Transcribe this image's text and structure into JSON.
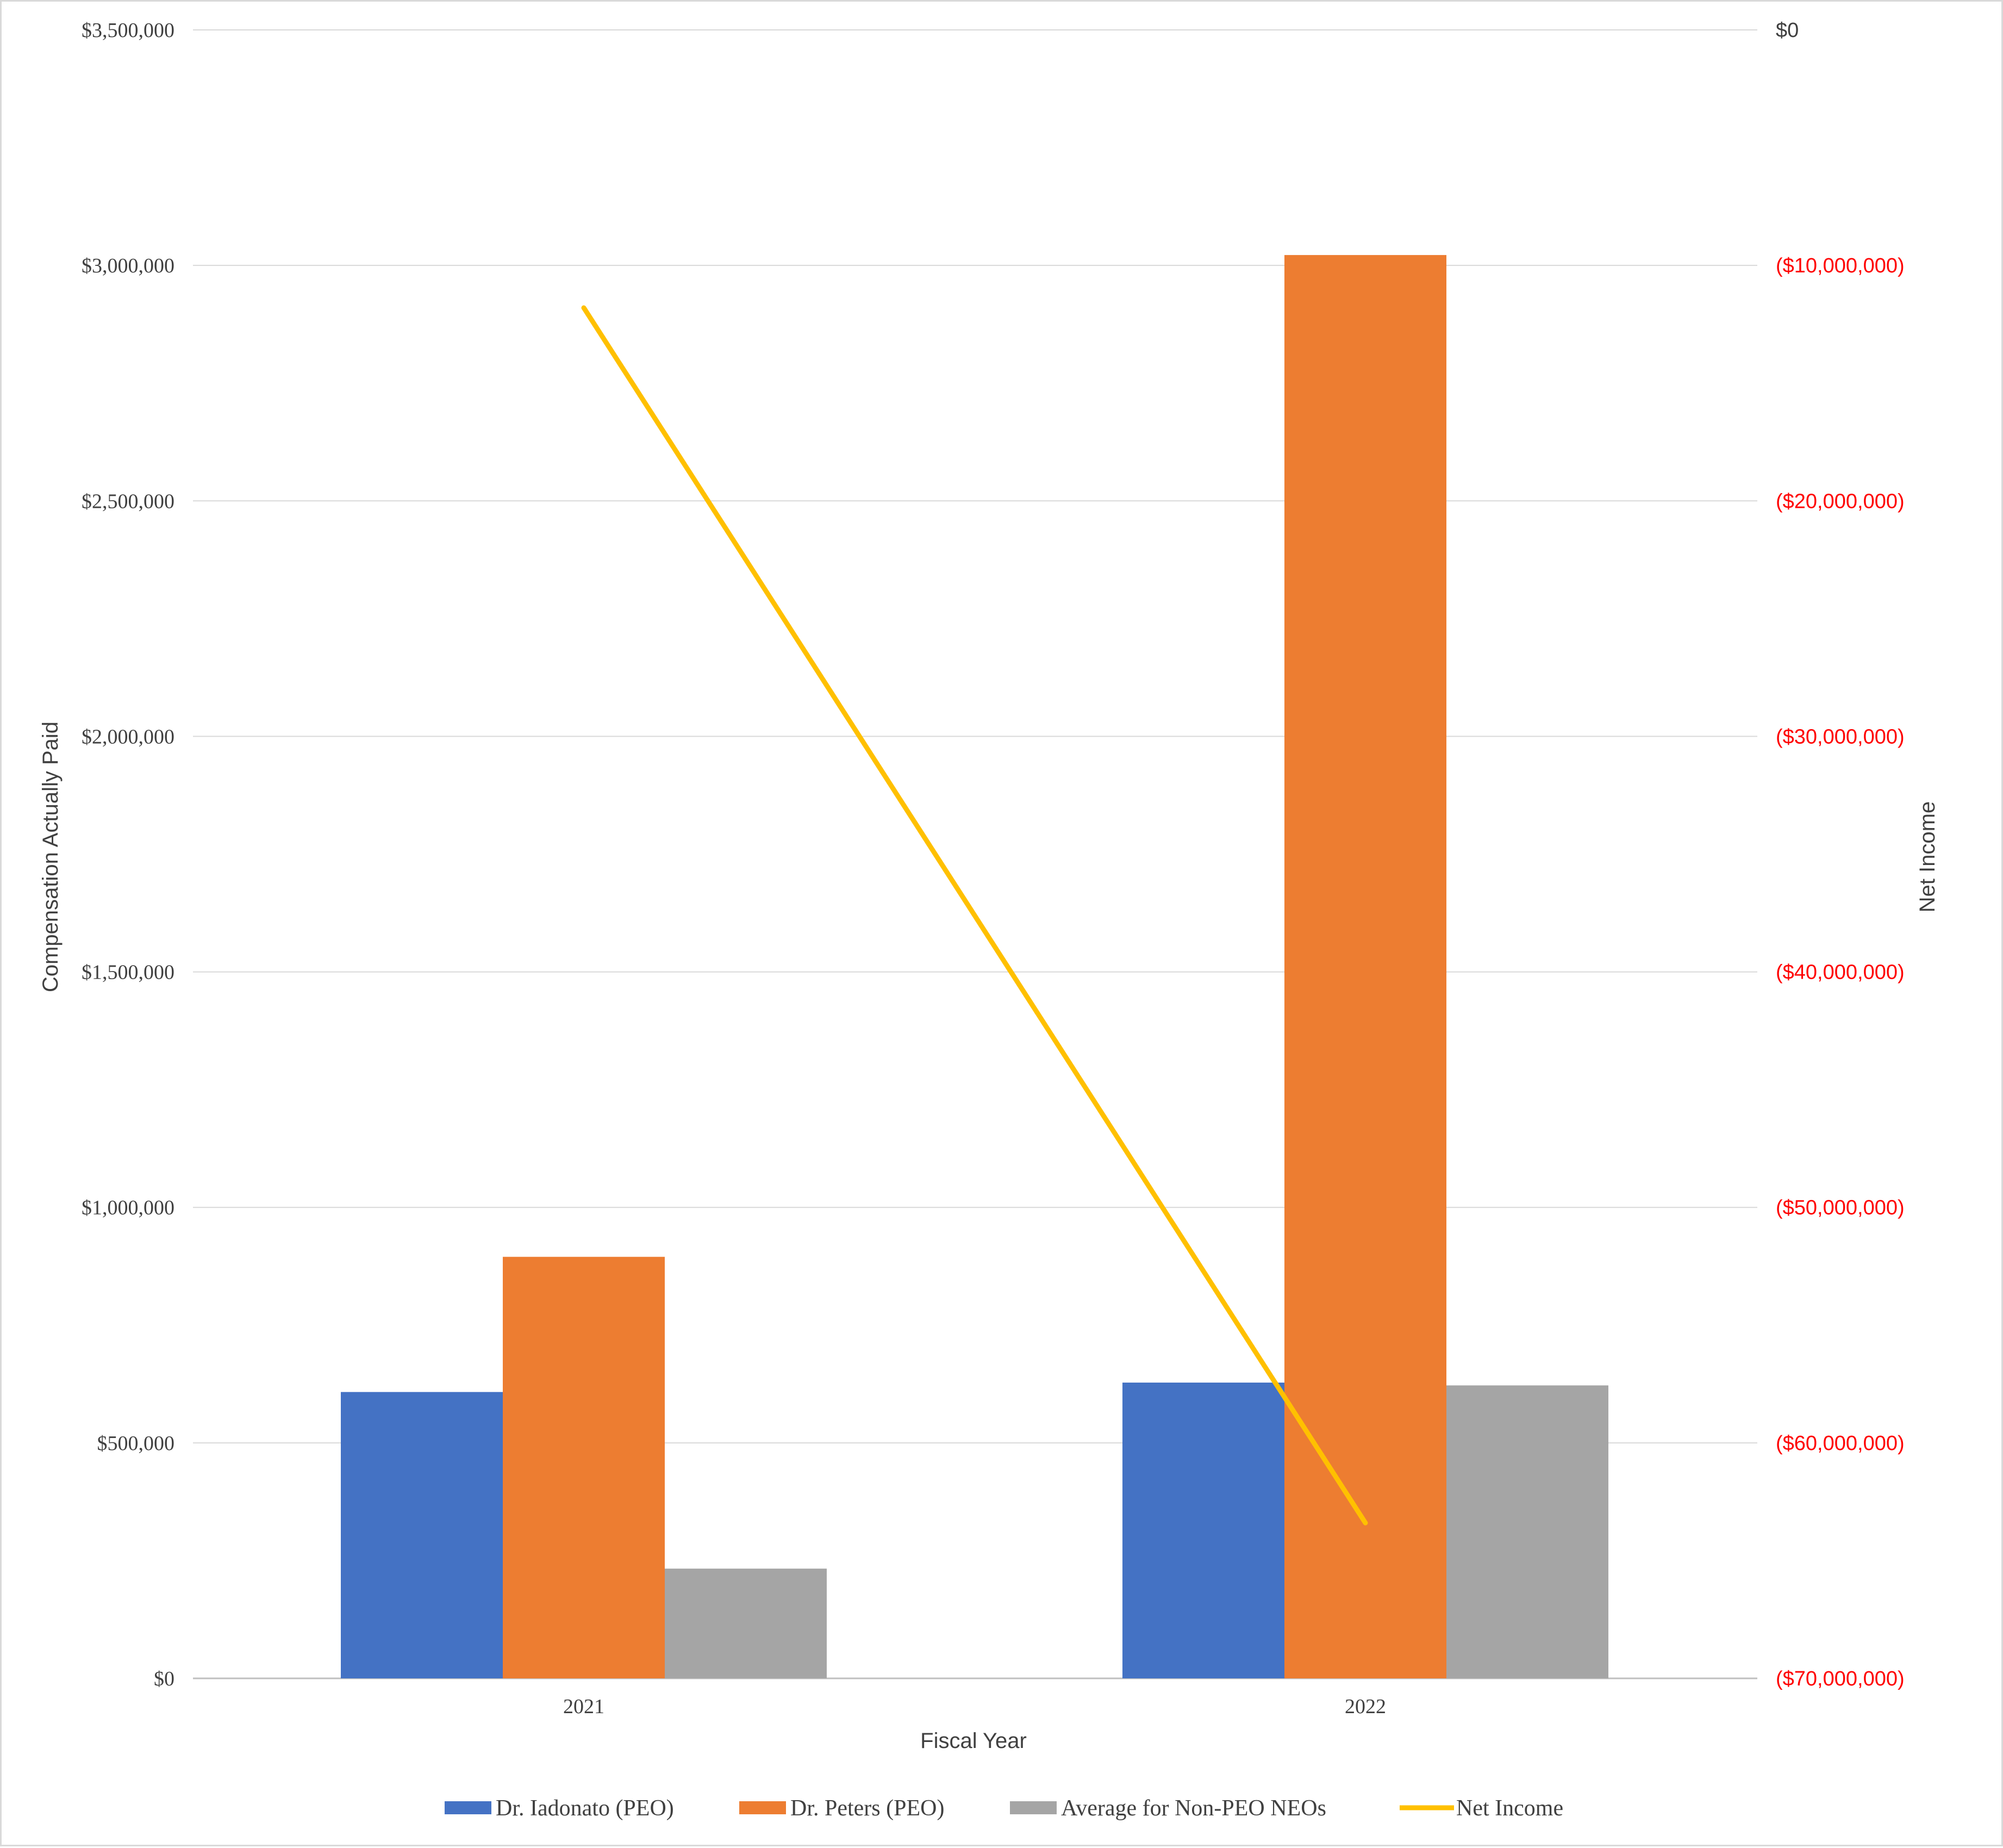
{
  "chart_data": {
    "type": "bar",
    "categories": [
      "2021",
      "2022"
    ],
    "series": [
      {
        "name": "Dr. Iadonato (PEO)",
        "type": "bar",
        "axis": "left",
        "color": "#4472C4",
        "values": [
          608000,
          628000
        ]
      },
      {
        "name": "Dr. Peters (PEO)",
        "type": "bar",
        "axis": "left",
        "color": "#ED7D31",
        "values": [
          895000,
          3022000
        ]
      },
      {
        "name": "Average for Non-PEO NEOs",
        "type": "bar",
        "axis": "left",
        "color": "#A5A5A5",
        "values": [
          233000,
          622000
        ]
      },
      {
        "name": "Net Income",
        "type": "line",
        "axis": "right",
        "color": "#FFC000",
        "values": [
          -11800000,
          -63400000
        ]
      }
    ],
    "xlabel": "Fiscal Year",
    "ylabel": "Compensation Actually Paid",
    "y2label": "Net Income",
    "ylim": [
      0,
      3500000
    ],
    "y2lim": [
      -70000000,
      0
    ],
    "yticks": [
      "$0",
      "$500,000",
      "$1,000,000",
      "$1,500,000",
      "$2,000,000",
      "$2,500,000",
      "$3,000,000",
      "$3,500,000"
    ],
    "y2ticks": [
      "($70,000,000)",
      "($60,000,000)",
      "($50,000,000)",
      "($40,000,000)",
      "($30,000,000)",
      "($20,000,000)",
      "($10,000,000)",
      "$0"
    ],
    "y2tick_negative_color": "#FF0000",
    "y2tick_zero_color": "#404040",
    "grid": true,
    "legend_position": "bottom"
  }
}
